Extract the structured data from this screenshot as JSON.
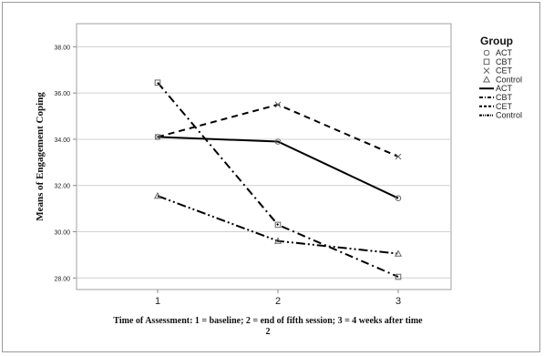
{
  "chart_data": {
    "type": "line",
    "xlabel": "Time of Assessment: 1 = baseline; 2 = end of fifth session; 3 = 4 weeks after time 2",
    "xlabel_lines": [
      "Time of Assessment: 1 = baseline; 2 = end of fifth session; 3 = 4 weeks after time",
      "2"
    ],
    "ylabel": "Means of Engagement Coping",
    "categories": [
      "1",
      "2",
      "3"
    ],
    "ylim": [
      27.5,
      39.0
    ],
    "yticks": [
      "38.00",
      "36.00",
      "34.00",
      "32.00",
      "30.00",
      "28.00"
    ],
    "ytick_values": [
      38,
      36,
      34,
      32,
      30,
      28
    ],
    "grid": true,
    "legend_position": "right",
    "legend_title": "Group",
    "marker_legend": [
      {
        "label": "ACT",
        "marker": "circle"
      },
      {
        "label": "CBT",
        "marker": "square"
      },
      {
        "label": "CET",
        "marker": "x"
      },
      {
        "label": "Control",
        "marker": "triangle"
      }
    ],
    "line_legend": [
      {
        "label": "ACT",
        "dash": "solid"
      },
      {
        "label": "CBT",
        "dash": "dashdot"
      },
      {
        "label": "CET",
        "dash": "dashed"
      },
      {
        "label": "Control",
        "dash": "dashdotdot"
      }
    ],
    "series": [
      {
        "name": "ACT",
        "values": [
          34.1,
          33.9,
          31.45
        ],
        "dash": "solid",
        "marker": "circle"
      },
      {
        "name": "CBT",
        "values": [
          36.45,
          30.3,
          28.05
        ],
        "dash": "dashdot",
        "marker": "square"
      },
      {
        "name": "CET",
        "values": [
          34.1,
          35.5,
          33.25
        ],
        "dash": "dashed",
        "marker": "x"
      },
      {
        "name": "Control",
        "values": [
          31.55,
          29.6,
          29.05
        ],
        "dash": "dashdotdot",
        "marker": "triangle"
      }
    ]
  }
}
